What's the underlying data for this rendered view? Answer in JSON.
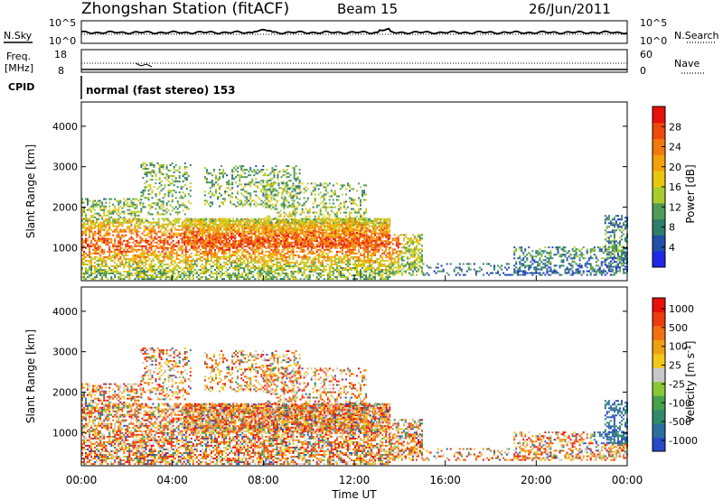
{
  "header": {
    "station": "Zhongshan Station (fitACF)",
    "beam": "Beam 15",
    "date": "26/Jun/2011"
  },
  "noise_panel": {
    "left_label": "N.Sky",
    "right_label": "N.Search",
    "left_ticks": [
      "10^5",
      "10^0"
    ],
    "right_ticks": [
      "10^5",
      "10^0"
    ]
  },
  "freq_panel": {
    "left_label_1": "Freq.",
    "left_label_2": "[MHz]",
    "right_label": "Nave",
    "left_ticks": [
      "18",
      "8"
    ],
    "right_ticks": [
      "60",
      "0"
    ]
  },
  "cpid": {
    "label": "CPID",
    "value": "normal (fast stereo) 153"
  },
  "colorbar_power": {
    "label": "Power [dB]",
    "ticks": [
      "4",
      "8",
      "12",
      "16",
      "20",
      "24",
      "28"
    ],
    "colors": [
      "#1e28e6",
      "#2050a8",
      "#2f7d6b",
      "#4f9b57",
      "#a8cc2a",
      "#e8c80c",
      "#f5a20a",
      "#f27a0c",
      "#ee4a0c",
      "#e8100c"
    ]
  },
  "colorbar_velocity": {
    "label": "Velocity [m s",
    "label_sup": "-1",
    "label_end": "]",
    "ticks": [
      "1000",
      "500",
      "100",
      "25",
      "-25",
      "-100",
      "-500",
      "-1000"
    ],
    "colors": [
      "#2848c8",
      "#2a6ea0",
      "#2f8a6a",
      "#48a04a",
      "#88c832",
      "#c8c8c8",
      "#f0c818",
      "#f0a010",
      "#f27010",
      "#ee3c10",
      "#e8100c"
    ]
  },
  "chart_data": [
    {
      "type": "heatmap",
      "name": "power",
      "ylabel": "Slant Range [km]",
      "yticks": [
        "1000",
        "2000",
        "3000",
        "4000"
      ],
      "ylim": [
        180,
        4600
      ],
      "xlim": [
        0,
        24
      ],
      "colorbar": "Power [dB]",
      "clim": [
        0,
        32
      ]
    },
    {
      "type": "heatmap",
      "name": "velocity",
      "ylabel": "Slant Range [km]",
      "yticks": [
        "1000",
        "2000",
        "3000",
        "4000"
      ],
      "ylim": [
        180,
        4600
      ],
      "xlim": [
        0,
        24
      ],
      "colorbar": "Velocity [m s-1]",
      "clim": [
        -1000,
        1000
      ]
    }
  ],
  "x_axis": {
    "label": "Time UT",
    "ticks": [
      "00:00",
      "04:00",
      "08:00",
      "12:00",
      "16:00",
      "20:00",
      "00:00"
    ]
  }
}
